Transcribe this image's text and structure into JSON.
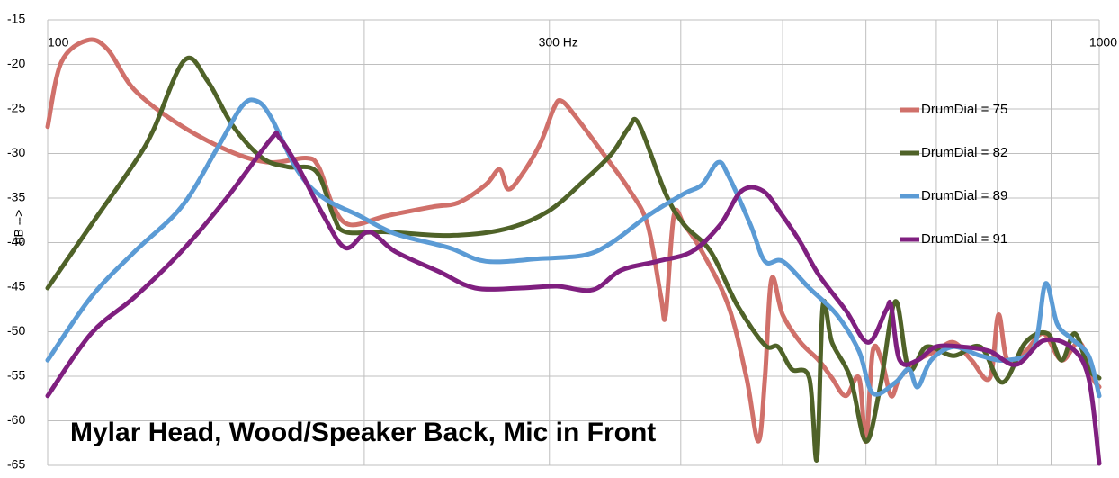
{
  "chart_data": {
    "type": "line",
    "annotation": "Mylar Head, Wood/Speaker Back, Mic in Front",
    "y_label": "dB -->",
    "log_x": true,
    "grid": true,
    "legend": "right",
    "xlim": [
      100,
      1000
    ],
    "xticks": [
      100,
      {
        "value": 300,
        "label": "300  Hz"
      },
      1000
    ],
    "xgrid": [
      200,
      400,
      500,
      600,
      700,
      800,
      900
    ],
    "ylim": [
      -65,
      -15
    ],
    "yticks": [
      -15,
      -20,
      -25,
      -30,
      -35,
      -40,
      -45,
      -50,
      -55,
      -60,
      -65
    ],
    "series": [
      {
        "name": "DrumDial = 75",
        "color": "#d0706a",
        "x": [
          100,
          103,
          109,
          114,
          121,
          134,
          150,
          163,
          176,
          181,
          187,
          194,
          210,
          232,
          246,
          261,
          269,
          274,
          282,
          294,
          303,
          308,
          318,
          337,
          357,
          372,
          383,
          387,
          394,
          403,
          419,
          444,
          462,
          474,
          481,
          488,
          500,
          520,
          541,
          557,
          574,
          591,
          600,
          609,
          621,
          634,
          646,
          672,
          699,
          727,
          756,
          787,
          802,
          818,
          851,
          885,
          921,
          958,
          986,
          1000
        ],
        "values": [
          -27,
          -19.8,
          -17.3,
          -18.3,
          -22.9,
          -26.9,
          -29.9,
          -31,
          -30.5,
          -31.5,
          -36,
          -38,
          -37,
          -36,
          -35.5,
          -33.5,
          -31.8,
          -34,
          -32.5,
          -28.9,
          -24.9,
          -24.1,
          -25.9,
          -29.9,
          -34,
          -38,
          -46.1,
          -48.1,
          -37,
          -38,
          -41,
          -47.1,
          -55.2,
          -62.3,
          -55.2,
          -44.1,
          -48.1,
          -51.2,
          -53.2,
          -55.2,
          -57.2,
          -55.2,
          -62.3,
          -52.2,
          -53.2,
          -57.2,
          -55.2,
          -53.2,
          -52.2,
          -51.2,
          -53.2,
          -55.2,
          -48.1,
          -53.2,
          -52.2,
          -50.2,
          -53.2,
          -51.2,
          -55.2,
          -56.2
        ]
      },
      {
        "name": "DrumDial = 82",
        "color": "#4f6228",
        "x": [
          100,
          110,
          121,
          126,
          135,
          142,
          150,
          160,
          169,
          180,
          187,
          192,
          210,
          241,
          272,
          299,
          324,
          344,
          357,
          365,
          387,
          403,
          427,
          453,
          481,
          495,
          510,
          530,
          539,
          546,
          557,
          580,
          600,
          619,
          640,
          659,
          685,
          727,
          771,
          809,
          851,
          893,
          921,
          948,
          977,
          1000
        ],
        "values": [
          -45.1,
          -38,
          -31,
          -27.4,
          -19.5,
          -21.9,
          -26.9,
          -30.5,
          -31.5,
          -32,
          -37,
          -38.8,
          -38.8,
          -39.2,
          -38.5,
          -36.5,
          -33,
          -30,
          -27.1,
          -26.7,
          -34.5,
          -38,
          -41,
          -47.1,
          -51.5,
          -51.7,
          -54.2,
          -55.2,
          -64.3,
          -47.1,
          -51.2,
          -55.2,
          -62.3,
          -56.2,
          -46.6,
          -54.2,
          -51.7,
          -52.7,
          -51.7,
          -55.7,
          -51.2,
          -50.2,
          -53.2,
          -50.2,
          -54.2,
          -55.2
        ]
      },
      {
        "name": "DrumDial = 89",
        "color": "#5b9bd5",
        "x": [
          100,
          110,
          121,
          134,
          145,
          153,
          158,
          163,
          173,
          183,
          198,
          214,
          241,
          261,
          294,
          324,
          344,
          372,
          403,
          419,
          434,
          444,
          466,
          481,
          500,
          530,
          563,
          591,
          609,
          640,
          659,
          672,
          692,
          727,
          771,
          818,
          867,
          889,
          912,
          939,
          977,
          1000
        ],
        "values": [
          -53.2,
          -46.1,
          -41,
          -36,
          -29.4,
          -24.7,
          -24.1,
          -25.9,
          -32,
          -35,
          -37,
          -39,
          -40.6,
          -42.1,
          -41.8,
          -41.4,
          -40,
          -37,
          -34.5,
          -33.5,
          -31,
          -32.5,
          -38,
          -42.1,
          -42.1,
          -45.1,
          -48.1,
          -52.2,
          -56.9,
          -55.7,
          -54.2,
          -56.2,
          -53.2,
          -51.7,
          -52.7,
          -53.2,
          -51.7,
          -44.6,
          -49.1,
          -50.7,
          -52.7,
          -57.2
        ]
      },
      {
        "name": "DrumDial = 91",
        "color": "#7f1f7f",
        "x": [
          100,
          110,
          121,
          134,
          148,
          163,
          166,
          173,
          183,
          192,
          202,
          214,
          236,
          255,
          282,
          305,
          330,
          351,
          380,
          410,
          436,
          457,
          479,
          500,
          520,
          541,
          574,
          603,
          627,
          634,
          646,
          672,
          699,
          741,
          787,
          834,
          885,
          939,
          977,
          1000
        ],
        "values": [
          -57.2,
          -50.2,
          -46.1,
          -41,
          -35,
          -28.4,
          -28.2,
          -31.5,
          -37,
          -40.6,
          -38.8,
          -41,
          -43.3,
          -45.1,
          -45.1,
          -44.9,
          -45.3,
          -43.1,
          -42.1,
          -41,
          -38,
          -34.2,
          -34.2,
          -37,
          -40,
          -43.6,
          -47.6,
          -51.2,
          -47.6,
          -47.1,
          -53.2,
          -53.2,
          -51.7,
          -51.7,
          -52.2,
          -53.7,
          -51,
          -51.7,
          -55.2,
          -64.8
        ]
      }
    ]
  }
}
